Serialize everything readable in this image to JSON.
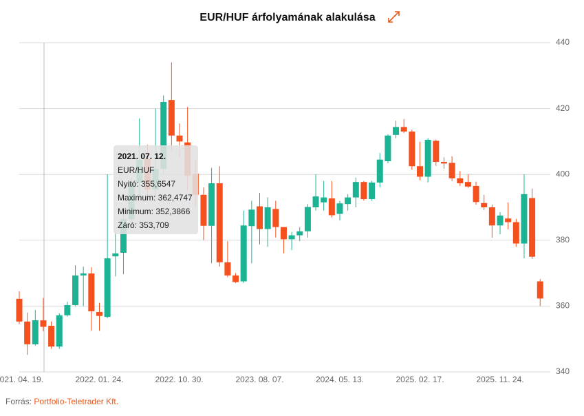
{
  "chart_data": {
    "type": "candlestick",
    "title": "EUR/HUF árfolyamának alakulása",
    "x": [
      "2021. 04. 19.",
      "2021. 05. 17.",
      "2021. 06. 14.",
      "2021. 07. 12.",
      "2021. 08. 09.",
      "2021. 09. 06.",
      "2021. 10. 04.",
      "2021. 11. 01.",
      "2021. 11. 29.",
      "2021. 12. 27.",
      "2022. 01. 24.",
      "2022. 02. 21.",
      "2022. 03. 21.",
      "2022. 04. 18.",
      "2022. 05. 16.",
      "2022. 06. 13.",
      "2022. 07. 11.",
      "2022. 08. 08.",
      "2022. 09. 05.",
      "2022. 10. 03.",
      "2022. 10. 31.",
      "2022. 11. 28.",
      "2022. 12. 26.",
      "2023. 01. 23.",
      "2023. 02. 20.",
      "2023. 03. 20.",
      "2023. 04. 17.",
      "2023. 05. 15.",
      "2023. 06. 12.",
      "2023. 07. 10.",
      "2023. 08. 07.",
      "2023. 09. 04.",
      "2023. 10. 02.",
      "2023. 10. 30.",
      "2023. 11. 27.",
      "2023. 12. 25.",
      "2024. 01. 22.",
      "2024. 02. 19.",
      "2024. 03. 18.",
      "2024. 04. 15.",
      "2024. 05. 13.",
      "2024. 06. 10.",
      "2024. 07. 08.",
      "2024. 08. 05.",
      "2024. 09. 02.",
      "2024. 09. 30.",
      "2024. 10. 28.",
      "2024. 11. 25.",
      "2024. 12. 23.",
      "2025. 01. 20.",
      "2025. 02. 17.",
      "2025. 03. 17.",
      "2025. 04. 14.",
      "2025. 05. 12.",
      "2025. 06. 09.",
      "2025. 07. 07.",
      "2025. 08. 04.",
      "2025. 09. 01.",
      "2025. 09. 29.",
      "2025. 10. 27.",
      "2025. 11. 24.",
      "2025. 12. 22.",
      "2026. 01. 19.",
      "2026. 02. 16.",
      "2026. 03. 16.",
      "2026. 04. 13."
    ],
    "series": [
      {
        "name": "EUR/HUF",
        "up_color": "#1bb394",
        "down_color": "#f4511e",
        "open": [
          362.2,
          355.3,
          348.4,
          355.6547,
          354,
          347.7,
          357.2,
          360.3,
          369.3,
          369.9,
          358.2,
          356.7,
          375.1,
          376.2,
          386.4,
          397.5,
          404.8,
          395.4,
          401.7,
          422.6,
          411.8,
          409.7,
          400.2,
          393.8,
          384.4,
          397.3,
          373.3,
          369.3,
          367.5,
          384.3,
          390.3,
          383.4,
          389.5,
          384,
          380.3,
          381.5,
          382.7,
          390,
          391.5,
          392.7,
          388,
          391,
          393,
          397.7,
          392.5,
          397.5,
          404,
          412,
          414.4,
          413,
          402.5,
          399.3,
          410.2,
          403.8,
          403.5,
          398.8,
          397.7,
          396.5,
          391.3,
          390,
          384.5,
          386.6,
          385.5,
          379,
          392.8,
          367.5
        ],
        "high": [
          364.5,
          358,
          358.8,
          362.4747,
          355.3,
          357.8,
          361.3,
          372.4,
          372,
          371.8,
          361,
          400,
          383,
          388,
          399,
          417,
          409,
          420,
          424,
          434,
          415.5,
          420.5,
          404.5,
          396,
          402,
          402.5,
          379.7,
          370,
          389,
          392,
          394.4,
          393,
          392,
          384,
          382.5,
          384,
          391,
          400,
          398,
          398,
          392,
          394,
          399,
          398,
          398,
          406.5,
          412.2,
          416.3,
          416.8,
          413.6,
          409.9,
          411,
          410.6,
          405.2,
          405.5,
          401,
          400,
          397.8,
          393.8,
          390.8,
          388.5,
          391.5,
          386.5,
          400,
          395.7,
          368.2
        ],
        "low": [
          354.5,
          345.2,
          348,
          352.3866,
          347,
          347,
          356.8,
          360,
          360,
          352.5,
          352.5,
          356.3,
          369,
          369.7,
          384,
          393,
          392,
          393,
          400,
          407,
          405,
          395,
          390,
          380,
          373,
          372,
          368.8,
          367,
          367,
          373,
          378.7,
          378,
          380.8,
          376,
          377,
          379.7,
          380.8,
          389,
          389,
          386.9,
          386,
          389,
          390,
          392,
          392,
          396,
          403.4,
          411,
          412.6,
          401.4,
          398.2,
          397.6,
          402.6,
          401.7,
          398,
          396.5,
          395.9,
          390.8,
          389.2,
          380.8,
          381.8,
          383.3,
          378,
          374.5,
          374.3,
          360
        ],
        "close": [
          355.3,
          348.4,
          355.7,
          353.709,
          347.7,
          357.2,
          360.3,
          369.3,
          369.9,
          358.4,
          357,
          374.5,
          376,
          386.4,
          397.5,
          404.4,
          395.4,
          401.7,
          422,
          411.8,
          410,
          399.6,
          393.8,
          384.4,
          397.3,
          373.3,
          369.3,
          367.3,
          384.5,
          389.3,
          383.4,
          390,
          384,
          380.3,
          381.5,
          382.7,
          390.1,
          393.3,
          393,
          387.6,
          391.2,
          393,
          397.7,
          392.5,
          397.5,
          404.5,
          411.8,
          414.4,
          413,
          402.5,
          399.3,
          410.5,
          403.8,
          403.3,
          398.8,
          397.3,
          396.3,
          391.6,
          390,
          384.5,
          387.5,
          385.5,
          379,
          394,
          375,
          362.3
        ]
      }
    ],
    "xticks": [
      "2021. 04. 19.",
      "2022. 01. 24.",
      "2022. 10. 30.",
      "2023. 08. 07.",
      "2024. 05. 13.",
      "2025. 02. 17.",
      "2025. 11. 24."
    ],
    "ylim": [
      340,
      440
    ],
    "yticks": [
      340,
      360,
      380,
      400,
      420,
      440
    ],
    "grid": true,
    "tooltip": {
      "date": "2021. 07. 12.",
      "series": "EUR/HUF",
      "rows": [
        "Nyitó: 355,6547",
        "Maximum: 362,4747",
        "Minimum: 352,3866",
        "Záró: 353,709"
      ]
    }
  },
  "footer": {
    "label": "Forrás:",
    "source": "Portfolio-Teletrader Kft."
  }
}
